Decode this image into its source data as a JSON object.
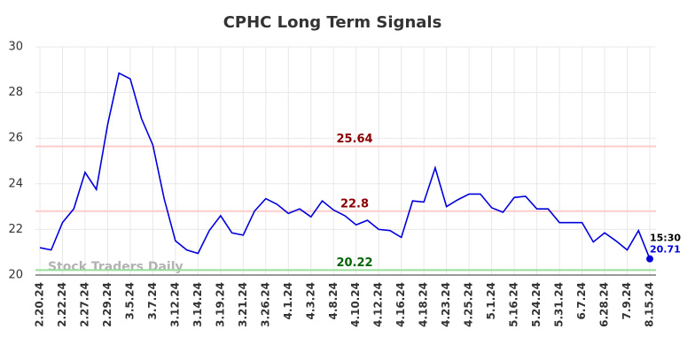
{
  "chart_data": {
    "type": "line",
    "title": "CPHC Long Term Signals",
    "categories": [
      "2.20.24",
      null,
      "2.22.24",
      null,
      "2.27.24",
      null,
      "2.29.24",
      null,
      "3.5.24",
      null,
      "3.7.24",
      null,
      "3.12.24",
      null,
      "3.14.24",
      null,
      "3.19.24",
      null,
      "3.21.24",
      null,
      "3.26.24",
      null,
      "4.1.24",
      null,
      "4.3.24",
      null,
      "4.8.24",
      null,
      "4.10.24",
      null,
      "4.12.24",
      null,
      "4.16.24",
      null,
      "4.18.24",
      null,
      "4.23.24",
      null,
      "4.25.24",
      null,
      "5.1.24",
      null,
      "5.16.24",
      null,
      "5.24.24",
      null,
      "5.31.24",
      null,
      "6.7.24",
      null,
      "6.28.24",
      null,
      "7.9.24",
      null,
      "8.15.24"
    ],
    "values": [
      21.2,
      21.1,
      22.3,
      22.9,
      24.5,
      23.75,
      26.6,
      28.85,
      28.6,
      26.85,
      25.7,
      23.35,
      21.5,
      21.1,
      20.95,
      21.95,
      22.6,
      21.85,
      21.75,
      22.8,
      23.35,
      23.1,
      22.7,
      22.9,
      22.55,
      23.25,
      22.85,
      22.6,
      22.2,
      22.4,
      22.0,
      21.95,
      21.65,
      23.25,
      23.2,
      24.7,
      23.0,
      23.3,
      23.55,
      23.55,
      22.95,
      22.75,
      23.4,
      23.45,
      22.9,
      22.9,
      22.3,
      22.3,
      22.3,
      21.45,
      21.85,
      21.5,
      21.1,
      21.95,
      20.71
    ],
    "color": "#0000dd",
    "ylim": [
      20,
      30
    ],
    "yticks": [
      20,
      22,
      24,
      26,
      28,
      30
    ],
    "grid": true,
    "hlines": [
      {
        "value": 25.64,
        "color": "#ffcccc",
        "label_color": "#8b0000"
      },
      {
        "value": 22.8,
        "color": "#ffcccc",
        "label_color": "#8b0000"
      },
      {
        "value": 20.22,
        "color": "#99dd99",
        "label_color": "#006400"
      }
    ],
    "last_time_label": "15:30",
    "watermark": "Stock Traders Daily"
  }
}
